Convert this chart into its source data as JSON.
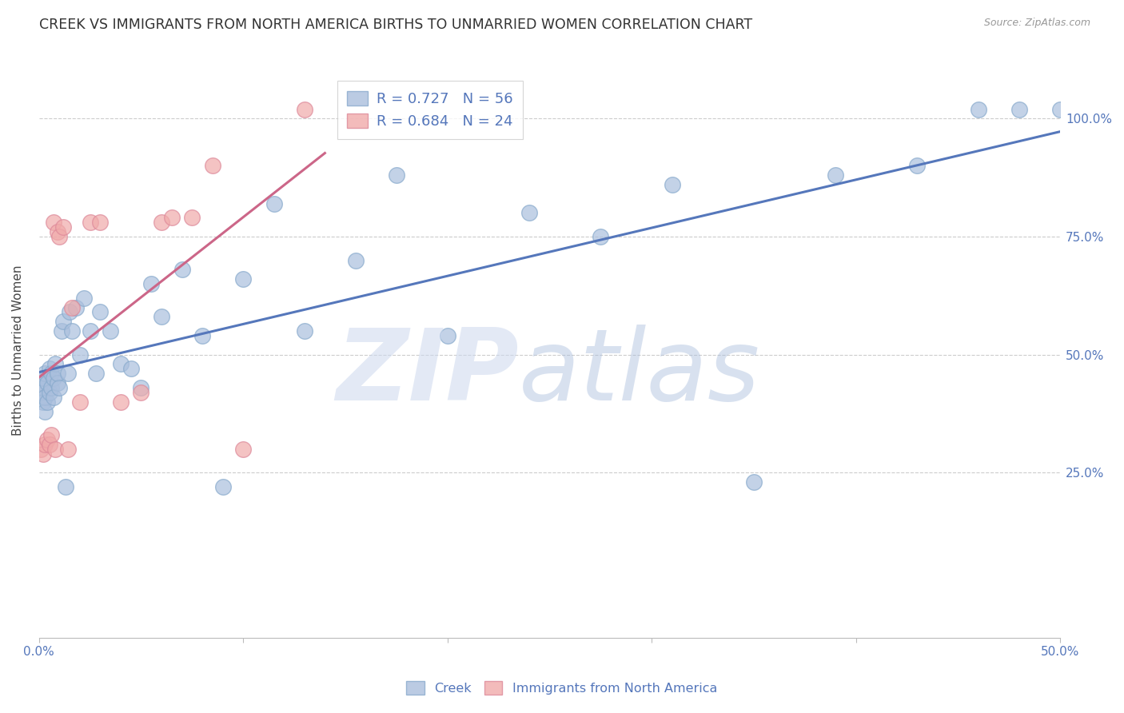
{
  "title": "CREEK VS IMMIGRANTS FROM NORTH AMERICA BIRTHS TO UNMARRIED WOMEN CORRELATION CHART",
  "source": "Source: ZipAtlas.com",
  "xlabel": "",
  "ylabel": "Births to Unmarried Women",
  "xlim": [
    0.0,
    0.5
  ],
  "ylim": [
    -0.1,
    1.12
  ],
  "xticks": [
    0.0,
    0.1,
    0.2,
    0.3,
    0.4,
    0.5
  ],
  "xtick_labels": [
    "0.0%",
    "",
    "",
    "",
    "",
    "50.0%"
  ],
  "yticks": [
    0.25,
    0.5,
    0.75,
    1.0
  ],
  "ytick_labels": [
    "25.0%",
    "50.0%",
    "75.0%",
    "100.0%"
  ],
  "legend1_label": "R = 0.727   N = 56",
  "legend2_label": "R = 0.684   N = 24",
  "creek_color": "#aabfdd",
  "immigrant_color": "#f0aaaa",
  "creek_line_color": "#5577bb",
  "immigrant_line_color": "#cc6688",
  "creek_edge_color": "#88aacc",
  "immigrant_edge_color": "#dd8899",
  "watermark_zip_color": "#ccd8ee",
  "watermark_atlas_color": "#aabedd",
  "creek_scatter_x": [
    0.001,
    0.001,
    0.002,
    0.002,
    0.002,
    0.003,
    0.003,
    0.003,
    0.004,
    0.004,
    0.005,
    0.005,
    0.006,
    0.006,
    0.007,
    0.007,
    0.008,
    0.009,
    0.009,
    0.01,
    0.011,
    0.012,
    0.013,
    0.014,
    0.015,
    0.016,
    0.018,
    0.02,
    0.022,
    0.025,
    0.028,
    0.03,
    0.035,
    0.04,
    0.045,
    0.05,
    0.055,
    0.06,
    0.07,
    0.08,
    0.09,
    0.1,
    0.115,
    0.13,
    0.155,
    0.175,
    0.2,
    0.24,
    0.275,
    0.31,
    0.35,
    0.39,
    0.43,
    0.46,
    0.48,
    0.5
  ],
  "creek_scatter_y": [
    0.42,
    0.44,
    0.4,
    0.43,
    0.45,
    0.38,
    0.41,
    0.46,
    0.4,
    0.44,
    0.42,
    0.47,
    0.43,
    0.46,
    0.41,
    0.45,
    0.48,
    0.44,
    0.46,
    0.43,
    0.55,
    0.57,
    0.22,
    0.46,
    0.59,
    0.55,
    0.6,
    0.5,
    0.62,
    0.55,
    0.46,
    0.59,
    0.55,
    0.48,
    0.47,
    0.43,
    0.65,
    0.58,
    0.68,
    0.54,
    0.22,
    0.66,
    0.82,
    0.55,
    0.7,
    0.88,
    0.54,
    0.8,
    0.75,
    0.86,
    0.23,
    0.88,
    0.9,
    1.02,
    1.02,
    1.02
  ],
  "immigrant_scatter_x": [
    0.001,
    0.002,
    0.003,
    0.004,
    0.005,
    0.006,
    0.007,
    0.008,
    0.009,
    0.01,
    0.012,
    0.014,
    0.016,
    0.02,
    0.025,
    0.03,
    0.04,
    0.05,
    0.06,
    0.065,
    0.075,
    0.085,
    0.1,
    0.13
  ],
  "immigrant_scatter_y": [
    0.3,
    0.29,
    0.31,
    0.32,
    0.31,
    0.33,
    0.78,
    0.3,
    0.76,
    0.75,
    0.77,
    0.3,
    0.6,
    0.4,
    0.78,
    0.78,
    0.4,
    0.42,
    0.78,
    0.79,
    0.79,
    0.9,
    0.3,
    1.02
  ],
  "background_color": "#ffffff",
  "grid_color": "#cccccc",
  "title_fontsize": 12.5,
  "axis_label_fontsize": 11,
  "tick_fontsize": 11,
  "legend_fontsize": 13
}
